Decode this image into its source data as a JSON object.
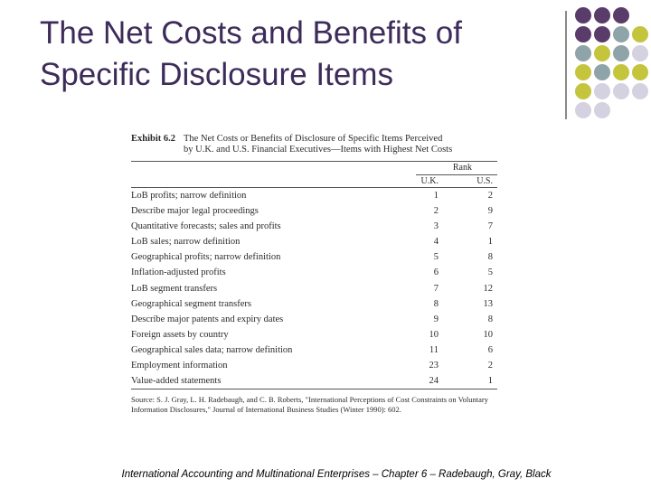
{
  "slide": {
    "title_line1": "The Net Costs and Benefits of",
    "title_line2": "Specific Disclosure Items",
    "footer": "International Accounting and Multinational Enterprises – Chapter 6 – Radebaugh, Gray, Black"
  },
  "decor": {
    "colors": {
      "purple": "#5a3c6b",
      "teal": "#8fa4a8",
      "olive": "#c5c43d",
      "lavender": "#d4d2e0"
    }
  },
  "exhibit": {
    "number": "Exhibit 6.2",
    "title_line1": "The Net Costs or Benefits of Disclosure of Specific Items Perceived",
    "title_line2": "by U.K. and U.S. Financial Executives—Items with Highest Net Costs",
    "rank_header": "Rank",
    "col_uk": "U.K.",
    "col_us": "U.S.",
    "rows": [
      {
        "item": "LoB profits; narrow definition",
        "uk": "1",
        "us": "2"
      },
      {
        "item": "Describe major legal proceedings",
        "uk": "2",
        "us": "9"
      },
      {
        "item": "Quantitative forecasts; sales and profits",
        "uk": "3",
        "us": "7"
      },
      {
        "item": "LoB sales; narrow definition",
        "uk": "4",
        "us": "1"
      },
      {
        "item": "Geographical profits; narrow definition",
        "uk": "5",
        "us": "8"
      },
      {
        "item": "Inflation-adjusted profits",
        "uk": "6",
        "us": "5"
      },
      {
        "item": "LoB segment transfers",
        "uk": "7",
        "us": "12"
      },
      {
        "item": "Geographical segment transfers",
        "uk": "8",
        "us": "13"
      },
      {
        "item": "Describe major patents and expiry dates",
        "uk": "9",
        "us": "8"
      },
      {
        "item": "Foreign assets by country",
        "uk": "10",
        "us": "10"
      },
      {
        "item": "Geographical sales data; narrow definition",
        "uk": "11",
        "us": "6"
      },
      {
        "item": "Employment information",
        "uk": "23",
        "us": "2"
      },
      {
        "item": "Value-added statements",
        "uk": "24",
        "us": "1"
      }
    ],
    "source": "Source: S. J. Gray, L. H. Radebaugh, and C. B. Roberts, \"International Perceptions of Cost Constraints on Voluntary Information Disclosures,\" Journal of International Business Studies (Winter 1990): 602."
  }
}
